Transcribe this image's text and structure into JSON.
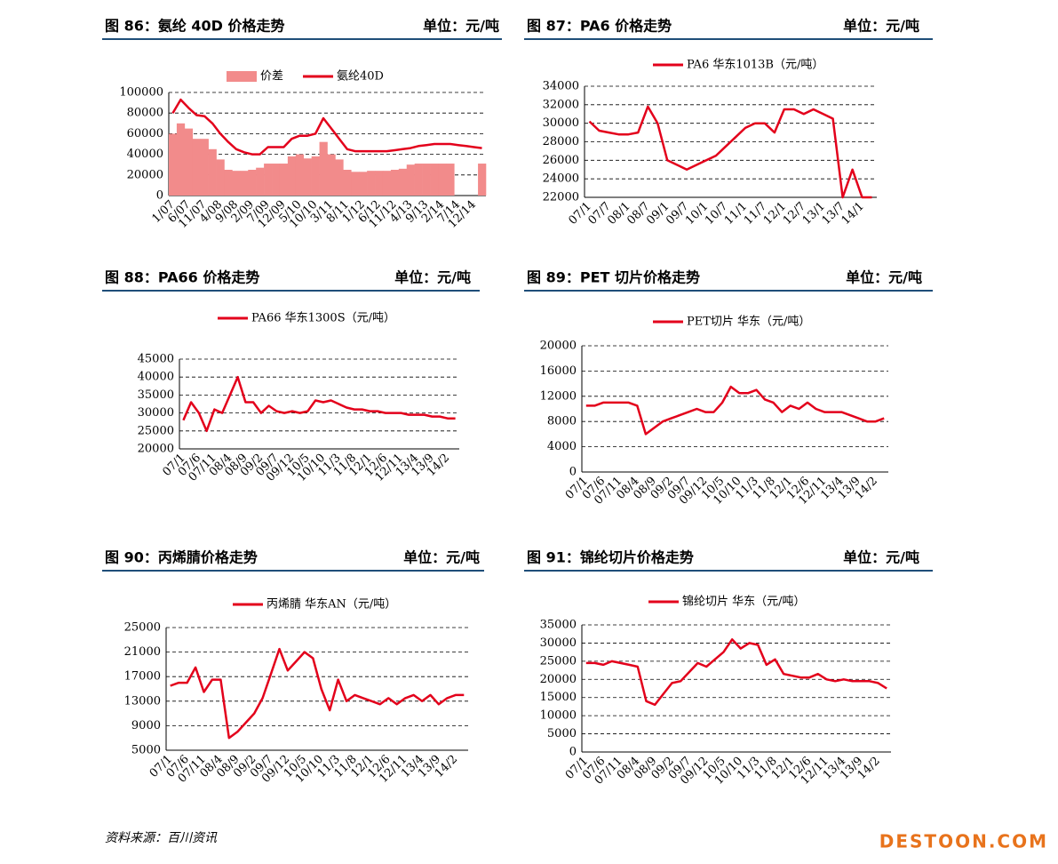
{
  "chart_data": [
    {
      "type": "combo",
      "title": "图 86：氨纶 40D 价格走势",
      "unit_label": "单位：元/吨",
      "categories": [
        "1/07",
        null,
        "6/07",
        null,
        "11/07",
        null,
        "4/08",
        null,
        "9/08",
        null,
        "2/09",
        null,
        "7/09",
        null,
        "12/09",
        null,
        "5/10",
        null,
        "10/10",
        null,
        "3/11",
        null,
        "8/11",
        null,
        "1/12",
        null,
        "6/12",
        null,
        "11/12",
        null,
        "4/13",
        null,
        "9/13",
        null,
        "2/14",
        null,
        "7/14",
        null,
        "12/14",
        null
      ],
      "series": [
        {
          "name": "价差",
          "type": "bar",
          "color": "#f28b8b",
          "values": [
            60000,
            70000,
            65000,
            55000,
            55000,
            45000,
            35000,
            25000,
            24000,
            24000,
            25000,
            27000,
            31000,
            31000,
            31000,
            38000,
            40000,
            36000,
            38000,
            52000,
            40000,
            35000,
            25000,
            23000,
            23000,
            24000,
            24000,
            24000,
            25000,
            26000,
            30000,
            31000,
            31000,
            31000,
            31000,
            31000,
            null,
            null,
            null,
            31000
          ]
        },
        {
          "name": "氨纶40D",
          "type": "line",
          "color": "#e3001b",
          "values": [
            80000,
            93000,
            85000,
            78000,
            77000,
            70000,
            60000,
            52000,
            45000,
            42000,
            40000,
            40000,
            47000,
            47000,
            47000,
            55000,
            58000,
            58000,
            60000,
            75000,
            65000,
            55000,
            45000,
            43000,
            43000,
            43000,
            43000,
            43000,
            44000,
            45000,
            46000,
            48000,
            49000,
            50000,
            50000,
            50000,
            49000,
            48000,
            47000,
            46000
          ]
        }
      ],
      "ylim": [
        0,
        100000
      ],
      "yticks": [
        0,
        20000,
        40000,
        60000,
        80000,
        100000
      ],
      "grid": true
    },
    {
      "type": "line",
      "title": "图 87：PA6 价格走势",
      "unit_label": "单位：元/吨",
      "categories": [
        "07/1",
        null,
        "07/7",
        null,
        "08/1",
        null,
        "08/7",
        null,
        "09/1",
        null,
        "09/7",
        null,
        "10/1",
        null,
        "10/7",
        null,
        "11/1",
        null,
        "11/7",
        null,
        "12/1",
        null,
        "12/7",
        null,
        "13/1",
        null,
        "13/7",
        null,
        "14/1",
        null
      ],
      "series": [
        {
          "name": "PA6 华东1013B（元/吨）",
          "color": "#e3001b",
          "values": [
            30200,
            29200,
            29000,
            28800,
            28800,
            29000,
            31800,
            30000,
            26000,
            25500,
            25000,
            25500,
            26000,
            26500,
            27500,
            28500,
            29500,
            30000,
            30000,
            29000,
            31500,
            31500,
            31000,
            31500,
            31000,
            30500,
            22000,
            25000,
            22000,
            22000
          ]
        }
      ],
      "ylim": [
        22000,
        34000
      ],
      "yticks": [
        22000,
        24000,
        26000,
        28000,
        30000,
        32000,
        34000
      ],
      "grid": true
    },
    {
      "type": "line",
      "title": "图 88：PA66 价格走势",
      "unit_label": "单位：元/吨",
      "categories": [
        "07/1",
        null,
        "07/6",
        null,
        "07/11",
        null,
        "08/4",
        null,
        "08/9",
        null,
        "09/2",
        null,
        "09/7",
        null,
        "09/12",
        null,
        "10/5",
        null,
        "10/10",
        null,
        "11/3",
        null,
        "11/8",
        null,
        "12/1",
        null,
        "12/6",
        null,
        "12/11",
        null,
        "13/4",
        null,
        "13/9",
        null,
        "14/2",
        null
      ],
      "series": [
        {
          "name": "PA66 华东1300S（元/吨）",
          "color": "#e3001b",
          "values": [
            28000,
            33000,
            30000,
            25000,
            31000,
            30000,
            35000,
            40000,
            33000,
            33000,
            30000,
            32000,
            30500,
            30000,
            30500,
            30000,
            30500,
            33500,
            33000,
            33500,
            32500,
            31500,
            31000,
            31000,
            30500,
            30500,
            30000,
            30000,
            30000,
            29500,
            29500,
            29500,
            29000,
            29000,
            28500,
            28500
          ]
        }
      ],
      "ylim": [
        20000,
        45000
      ],
      "yticks": [
        20000,
        25000,
        30000,
        35000,
        40000,
        45000
      ],
      "grid": true
    },
    {
      "type": "line",
      "title": "图 89：PET 切片价格走势",
      "unit_label": "单位：元/吨",
      "categories": [
        "07/1",
        null,
        "07/6",
        null,
        "07/11",
        null,
        "08/4",
        null,
        "08/9",
        null,
        "09/2",
        null,
        "09/7",
        null,
        "09/12",
        null,
        "10/5",
        null,
        "10/10",
        null,
        "11/3",
        null,
        "11/8",
        null,
        "12/1",
        null,
        "12/6",
        null,
        "12/11",
        null,
        "13/4",
        null,
        "13/9",
        null,
        "14/2",
        null
      ],
      "series": [
        {
          "name": "PET切片 华东（元/吨）",
          "color": "#e3001b",
          "values": [
            10500,
            10500,
            11000,
            11000,
            11000,
            11000,
            10500,
            6000,
            7000,
            8000,
            8500,
            9000,
            9500,
            10000,
            9500,
            9500,
            11000,
            13500,
            12500,
            12500,
            13000,
            11500,
            11000,
            9500,
            10500,
            10000,
            11000,
            10000,
            9500,
            9500,
            9500,
            9000,
            8500,
            8000,
            8000,
            8500
          ]
        }
      ],
      "ylim": [
        0,
        20000
      ],
      "yticks": [
        0,
        4000,
        8000,
        12000,
        16000,
        20000
      ],
      "grid": true
    },
    {
      "type": "line",
      "title": "图 90：丙烯腈价格走势",
      "unit_label": "单位：元/吨",
      "categories": [
        "07/1",
        null,
        "07/6",
        null,
        "07/11",
        null,
        "08/4",
        null,
        "08/9",
        null,
        "09/2",
        null,
        "09/7",
        null,
        "09/12",
        null,
        "10/5",
        null,
        "10/10",
        null,
        "11/3",
        null,
        "11/8",
        null,
        "12/1",
        null,
        "12/6",
        null,
        "12/11",
        null,
        "13/4",
        null,
        "13/9",
        null,
        "14/2",
        null
      ],
      "series": [
        {
          "name": "丙烯腈 华东AN（元/吨）",
          "color": "#e3001b",
          "values": [
            15500,
            16000,
            16000,
            18500,
            14500,
            16500,
            16500,
            7000,
            8000,
            9500,
            11000,
            13500,
            17500,
            21500,
            18000,
            19500,
            21000,
            20000,
            15000,
            11500,
            16500,
            13000,
            14000,
            13500,
            13000,
            12500,
            13500,
            12500,
            13500,
            14000,
            13000,
            14000,
            12500,
            13500,
            14000,
            14000
          ]
        }
      ],
      "ylim": [
        5000,
        25000
      ],
      "yticks": [
        5000,
        9000,
        13000,
        17000,
        21000,
        25000
      ],
      "grid": true
    },
    {
      "type": "line",
      "title": "图 91：锦纶切片价格走势",
      "unit_label": "单位：元/吨",
      "categories": [
        "07/1",
        null,
        "07/6",
        null,
        "07/11",
        null,
        "08/4",
        null,
        "08/9",
        null,
        "09/2",
        null,
        "09/7",
        null,
        "09/12",
        null,
        "10/5",
        null,
        "10/10",
        null,
        "11/3",
        null,
        "11/8",
        null,
        "12/1",
        null,
        "12/6",
        null,
        "12/11",
        null,
        "13/4",
        null,
        "13/9",
        null,
        "14/2",
        null
      ],
      "series": [
        {
          "name": "锦纶切片 华东（元/吨）",
          "color": "#e3001b",
          "values": [
            24500,
            24500,
            24000,
            25000,
            24500,
            24000,
            23500,
            14000,
            13000,
            16000,
            19000,
            19500,
            22000,
            24500,
            23500,
            25500,
            27500,
            31000,
            28500,
            30000,
            29500,
            24000,
            25500,
            21500,
            21000,
            20500,
            20500,
            21500,
            20000,
            19500,
            20000,
            19500,
            19500,
            19500,
            19000,
            17500
          ]
        }
      ],
      "ylim": [
        0,
        35000
      ],
      "yticks": [
        0,
        5000,
        10000,
        15000,
        20000,
        25000,
        30000,
        35000
      ],
      "grid": true
    }
  ],
  "footer": {
    "source": "资料来源：百川资讯",
    "watermark": "DESTOON.COM"
  }
}
